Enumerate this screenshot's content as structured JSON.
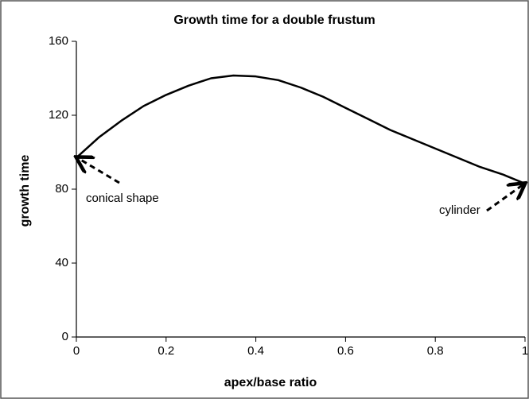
{
  "chart_data": {
    "type": "line",
    "title": "Growth time for a double frustum",
    "x_label": "apex/base ratio",
    "y_label": "growth time",
    "x": [
      0,
      0.05,
      0.1,
      0.15,
      0.2,
      0.25,
      0.3,
      0.35,
      0.4,
      0.45,
      0.5,
      0.55,
      0.6,
      0.65,
      0.7,
      0.75,
      0.8,
      0.85,
      0.9,
      0.95,
      1
    ],
    "series": [
      {
        "name": "growth time",
        "color": "#000000",
        "values": [
          97,
          108,
          117,
          125,
          131,
          136,
          140,
          141.5,
          141,
          139,
          135,
          130,
          124,
          118,
          112,
          107,
          102,
          97,
          92,
          88,
          83
        ]
      }
    ],
    "xlim": [
      0,
      1
    ],
    "xticks": [
      0,
      0.2,
      0.4,
      0.6,
      0.8,
      1
    ],
    "ylim": [
      0,
      160
    ],
    "yticks": [
      0,
      40,
      80,
      120,
      160
    ],
    "grid": false,
    "annotations": [
      {
        "text": "conical shape"
      },
      {
        "text": "cylinder"
      }
    ]
  }
}
